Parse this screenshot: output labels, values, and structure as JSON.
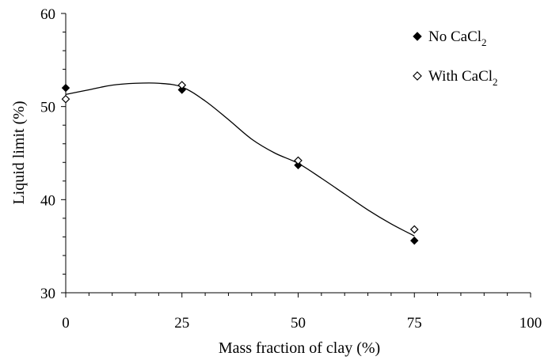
{
  "chart_data": {
    "type": "scatter",
    "title": "",
    "xlabel": "Mass fraction of clay (%)",
    "ylabel": "Liquid limit (%)",
    "xlim": [
      0,
      100
    ],
    "ylim": [
      30,
      60
    ],
    "x_ticks": [
      "0",
      "25",
      "50",
      "75",
      "100"
    ],
    "y_ticks": [
      "30",
      "40",
      "50",
      "60"
    ],
    "grid": false,
    "legend_position": "top-right",
    "series": [
      {
        "name_main": "No CaCl",
        "name_sub": "2",
        "marker": "filled-diamond",
        "x": [
          0,
          25,
          50,
          75
        ],
        "y": [
          52.0,
          51.8,
          43.7,
          35.6
        ]
      },
      {
        "name_main": "With CaCl",
        "name_sub": "2",
        "marker": "open-diamond",
        "x": [
          0,
          25,
          50,
          75
        ],
        "y": [
          50.8,
          52.3,
          44.2,
          36.8
        ]
      }
    ],
    "trend_line": {
      "x": [
        0,
        5,
        10,
        15,
        20,
        25,
        30,
        35,
        40,
        45,
        50,
        55,
        60,
        65,
        70,
        75
      ],
      "y": [
        51.3,
        51.8,
        52.3,
        52.5,
        52.5,
        52.1,
        50.6,
        48.6,
        46.5,
        45.0,
        43.9,
        42.3,
        40.6,
        38.9,
        37.4,
        36.1
      ]
    }
  }
}
